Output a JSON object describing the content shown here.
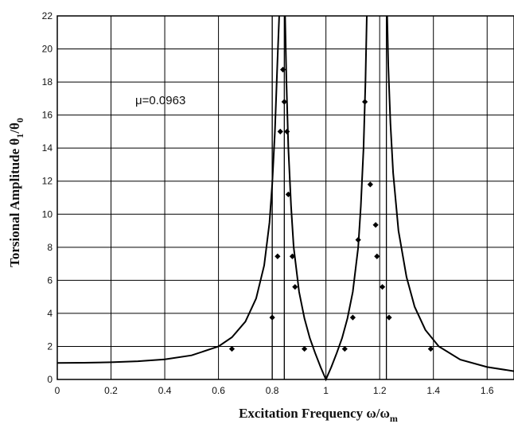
{
  "chart_data": {
    "type": "scatter",
    "xlim": [
      0,
      1.7
    ],
    "ylim": [
      0,
      22
    ],
    "grid": true,
    "x_ticks": [
      "0",
      "0.2",
      "0.4",
      "0.6",
      "0.8",
      "1",
      "1.2",
      "1.4",
      "1.6"
    ],
    "y_ticks": [
      "0",
      "2",
      "4",
      "6",
      "8",
      "10",
      "12",
      "14",
      "16",
      "18",
      "20",
      "22"
    ],
    "xlabel": {
      "main": "Excitation Frequency ω/ω",
      "sub": "m"
    },
    "ylabel": {
      "main": "Torsional Amplitude θ",
      "sub1": "1",
      "mid": "/θ",
      "sub2": "0"
    },
    "annotation": "μ=0.0963",
    "series": [
      {
        "kind": "curve",
        "points": [
          [
            0.0,
            1.0
          ],
          [
            0.1,
            1.01
          ],
          [
            0.2,
            1.04
          ],
          [
            0.3,
            1.1
          ],
          [
            0.4,
            1.22
          ],
          [
            0.5,
            1.46
          ],
          [
            0.6,
            2.0
          ],
          [
            0.65,
            2.55
          ],
          [
            0.7,
            3.5
          ],
          [
            0.74,
            4.9
          ],
          [
            0.77,
            6.9
          ],
          [
            0.79,
            9.5
          ],
          [
            0.8,
            11.8
          ],
          [
            0.81,
            15.0
          ],
          [
            0.82,
            19.5
          ],
          [
            0.826,
            22.0
          ]
        ]
      },
      {
        "kind": "curve",
        "points": [
          [
            0.848,
            22.0
          ],
          [
            0.853,
            18.0
          ],
          [
            0.86,
            14.0
          ],
          [
            0.87,
            10.5
          ],
          [
            0.88,
            8.0
          ],
          [
            0.9,
            5.3
          ],
          [
            0.92,
            3.7
          ],
          [
            0.94,
            2.5
          ],
          [
            0.96,
            1.6
          ],
          [
            0.98,
            0.75
          ],
          [
            1.0,
            0.0
          ],
          [
            1.02,
            0.75
          ],
          [
            1.04,
            1.6
          ],
          [
            1.06,
            2.5
          ],
          [
            1.08,
            3.7
          ],
          [
            1.1,
            5.3
          ],
          [
            1.12,
            8.0
          ],
          [
            1.13,
            10.5
          ],
          [
            1.14,
            14.0
          ],
          [
            1.147,
            18.0
          ],
          [
            1.152,
            22.0
          ]
        ]
      },
      {
        "kind": "curve",
        "points": [
          [
            1.228,
            22.0
          ],
          [
            1.232,
            19.0
          ],
          [
            1.24,
            15.5
          ],
          [
            1.25,
            12.5
          ],
          [
            1.27,
            9.0
          ],
          [
            1.3,
            6.2
          ],
          [
            1.33,
            4.4
          ],
          [
            1.37,
            3.0
          ],
          [
            1.42,
            2.0
          ],
          [
            1.5,
            1.2
          ],
          [
            1.6,
            0.75
          ],
          [
            1.7,
            0.5
          ]
        ]
      },
      {
        "kind": "points",
        "points": [
          [
            0.65,
            1.85
          ],
          [
            0.8,
            3.75
          ],
          [
            0.82,
            7.45
          ],
          [
            0.83,
            15.0
          ],
          [
            0.84,
            18.75
          ],
          [
            0.845,
            16.8
          ],
          [
            0.855,
            15.0
          ],
          [
            0.86,
            11.2
          ],
          [
            0.875,
            7.45
          ],
          [
            0.885,
            5.6
          ],
          [
            0.92,
            1.85
          ],
          [
            1.07,
            1.85
          ],
          [
            1.1,
            3.75
          ],
          [
            1.12,
            8.45
          ],
          [
            1.145,
            16.8
          ],
          [
            1.165,
            11.8
          ],
          [
            1.185,
            9.35
          ],
          [
            1.19,
            7.45
          ],
          [
            1.21,
            5.6
          ],
          [
            1.235,
            3.75
          ],
          [
            1.39,
            1.85
          ]
        ]
      }
    ],
    "vertical_lines": [
      0.8,
      0.845,
      1.225
    ]
  }
}
